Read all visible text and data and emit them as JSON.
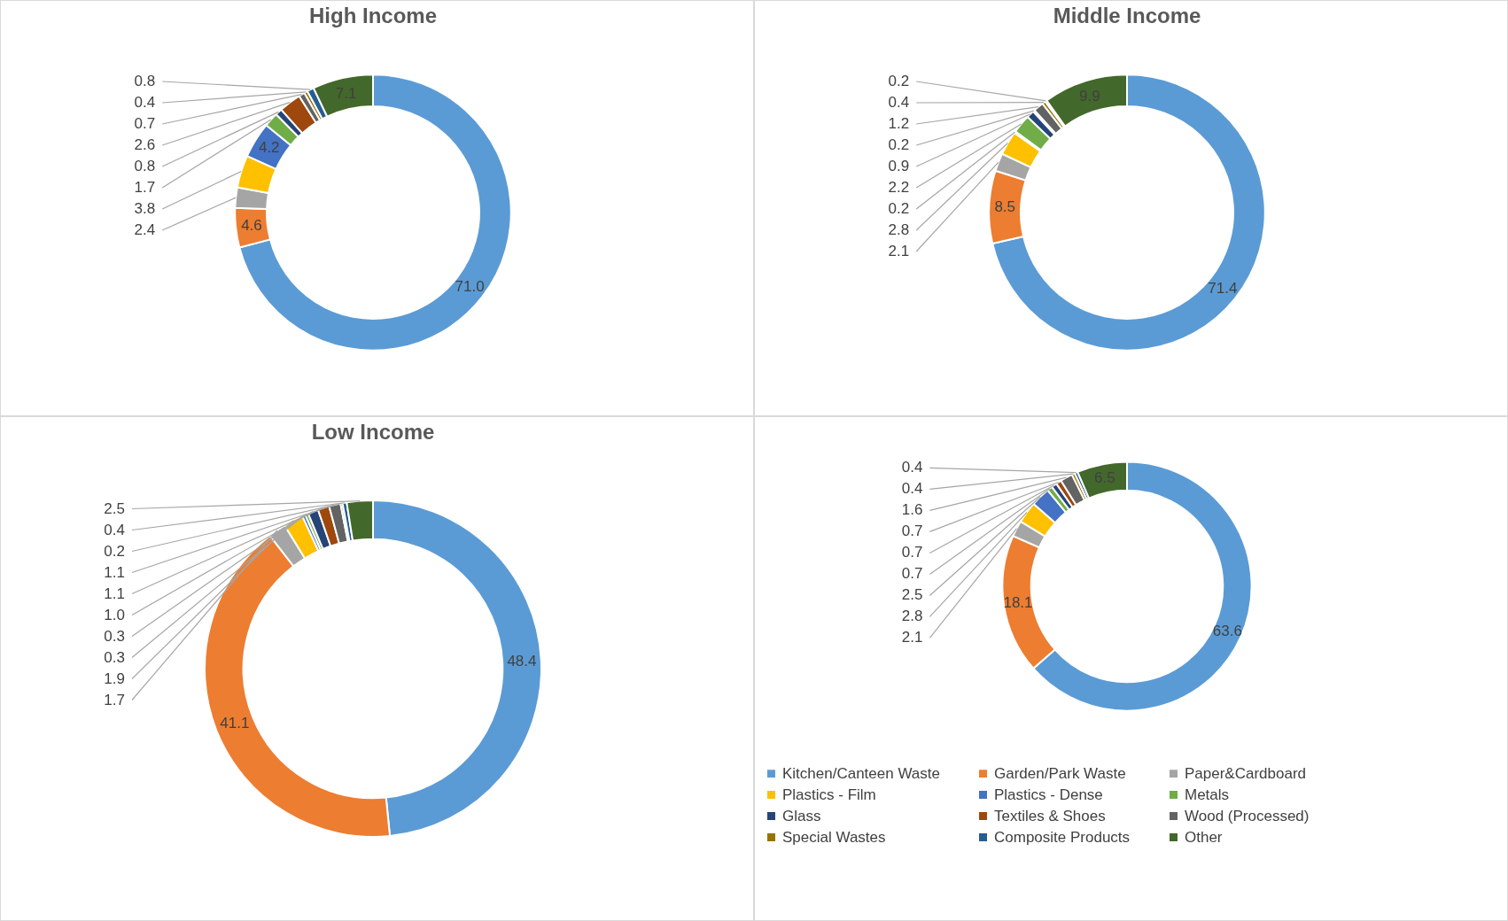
{
  "chart_data": [
    {
      "type": "donut",
      "title": "High Income",
      "categories": [
        null,
        null,
        null,
        null,
        null,
        null,
        null,
        null,
        null,
        null,
        null,
        null
      ],
      "values": [
        71.0,
        4.6,
        2.4,
        3.8,
        4.2,
        1.7,
        0.8,
        2.6,
        0.7,
        0.4,
        0.8,
        7.1
      ],
      "colors": [
        "#5b9bd5",
        "#ed7d31",
        "#a5a5a5",
        "#ffc000",
        "#4472c4",
        "#70ad47",
        "#264478",
        "#9e480e",
        "#636363",
        "#997300",
        "#255e91",
        "#43682b"
      ],
      "value_labels": [
        "71.0",
        "4.6",
        "2.4",
        "3.8",
        "4.2",
        "1.7",
        "0.8",
        "2.6",
        "0.7",
        "0.4",
        "0.8",
        "7.1"
      ]
    },
    {
      "type": "donut",
      "title": "Middle Income",
      "categories": [
        null,
        null,
        null,
        null,
        null,
        null,
        null,
        null,
        null,
        null,
        null,
        null
      ],
      "values": [
        71.4,
        8.5,
        2.1,
        2.8,
        0.2,
        2.2,
        0.9,
        0.2,
        1.2,
        0.4,
        0.2,
        9.9
      ],
      "colors": [
        "#5b9bd5",
        "#ed7d31",
        "#a5a5a5",
        "#ffc000",
        "#4472c4",
        "#70ad47",
        "#264478",
        "#9e480e",
        "#636363",
        "#997300",
        "#255e91",
        "#43682b"
      ],
      "value_labels": [
        "71.4",
        "8.5",
        "2.1",
        "2.8",
        "0.2",
        "2.2",
        "0.9",
        "0.2",
        "1.2",
        "0.4",
        "0.2",
        "9.9"
      ]
    },
    {
      "type": "donut",
      "title": "Low Income",
      "categories": [
        null,
        null,
        null,
        null,
        null,
        null,
        null,
        null,
        null,
        null,
        null,
        null
      ],
      "values": [
        48.4,
        41.1,
        1.7,
        1.9,
        0.3,
        0.3,
        1.0,
        1.1,
        1.1,
        0.2,
        0.4,
        2.5
      ],
      "colors": [
        "#5b9bd5",
        "#ed7d31",
        "#a5a5a5",
        "#ffc000",
        "#4472c4",
        "#70ad47",
        "#264478",
        "#9e480e",
        "#636363",
        "#997300",
        "#255e91",
        "#43682b"
      ],
      "value_labels": [
        "48.4",
        "41.1",
        "1.7",
        "1.9",
        "0.3",
        "0.3",
        "1.0",
        "1.1",
        "1.1",
        "0.2",
        "0.4",
        "2.5"
      ]
    },
    {
      "type": "donut",
      "categories": [
        "Kitchen/Canteen Waste",
        "Garden/Park Waste",
        "Paper&Cardboard",
        "Plastics - Film",
        "Plastics - Dense",
        "Metals",
        "Glass",
        "Textiles & Shoes",
        "Wood (Processed)",
        "Special Wastes",
        "Composite Products",
        "Other"
      ],
      "values": [
        63.6,
        18.1,
        2.1,
        2.8,
        2.5,
        0.7,
        0.7,
        0.7,
        1.6,
        0.4,
        0.4,
        6.5
      ],
      "colors": [
        "#5b9bd5",
        "#ed7d31",
        "#a5a5a5",
        "#ffc000",
        "#4472c4",
        "#70ad47",
        "#264478",
        "#9e480e",
        "#636363",
        "#997300",
        "#255e91",
        "#43682b"
      ],
      "value_labels": [
        "63.6",
        "18.1",
        "2.1",
        "2.8",
        "2.5",
        "0.7",
        "0.7",
        "0.7",
        "1.6",
        "0.4",
        "0.4",
        "6.5"
      ],
      "legend": "bottom"
    }
  ]
}
